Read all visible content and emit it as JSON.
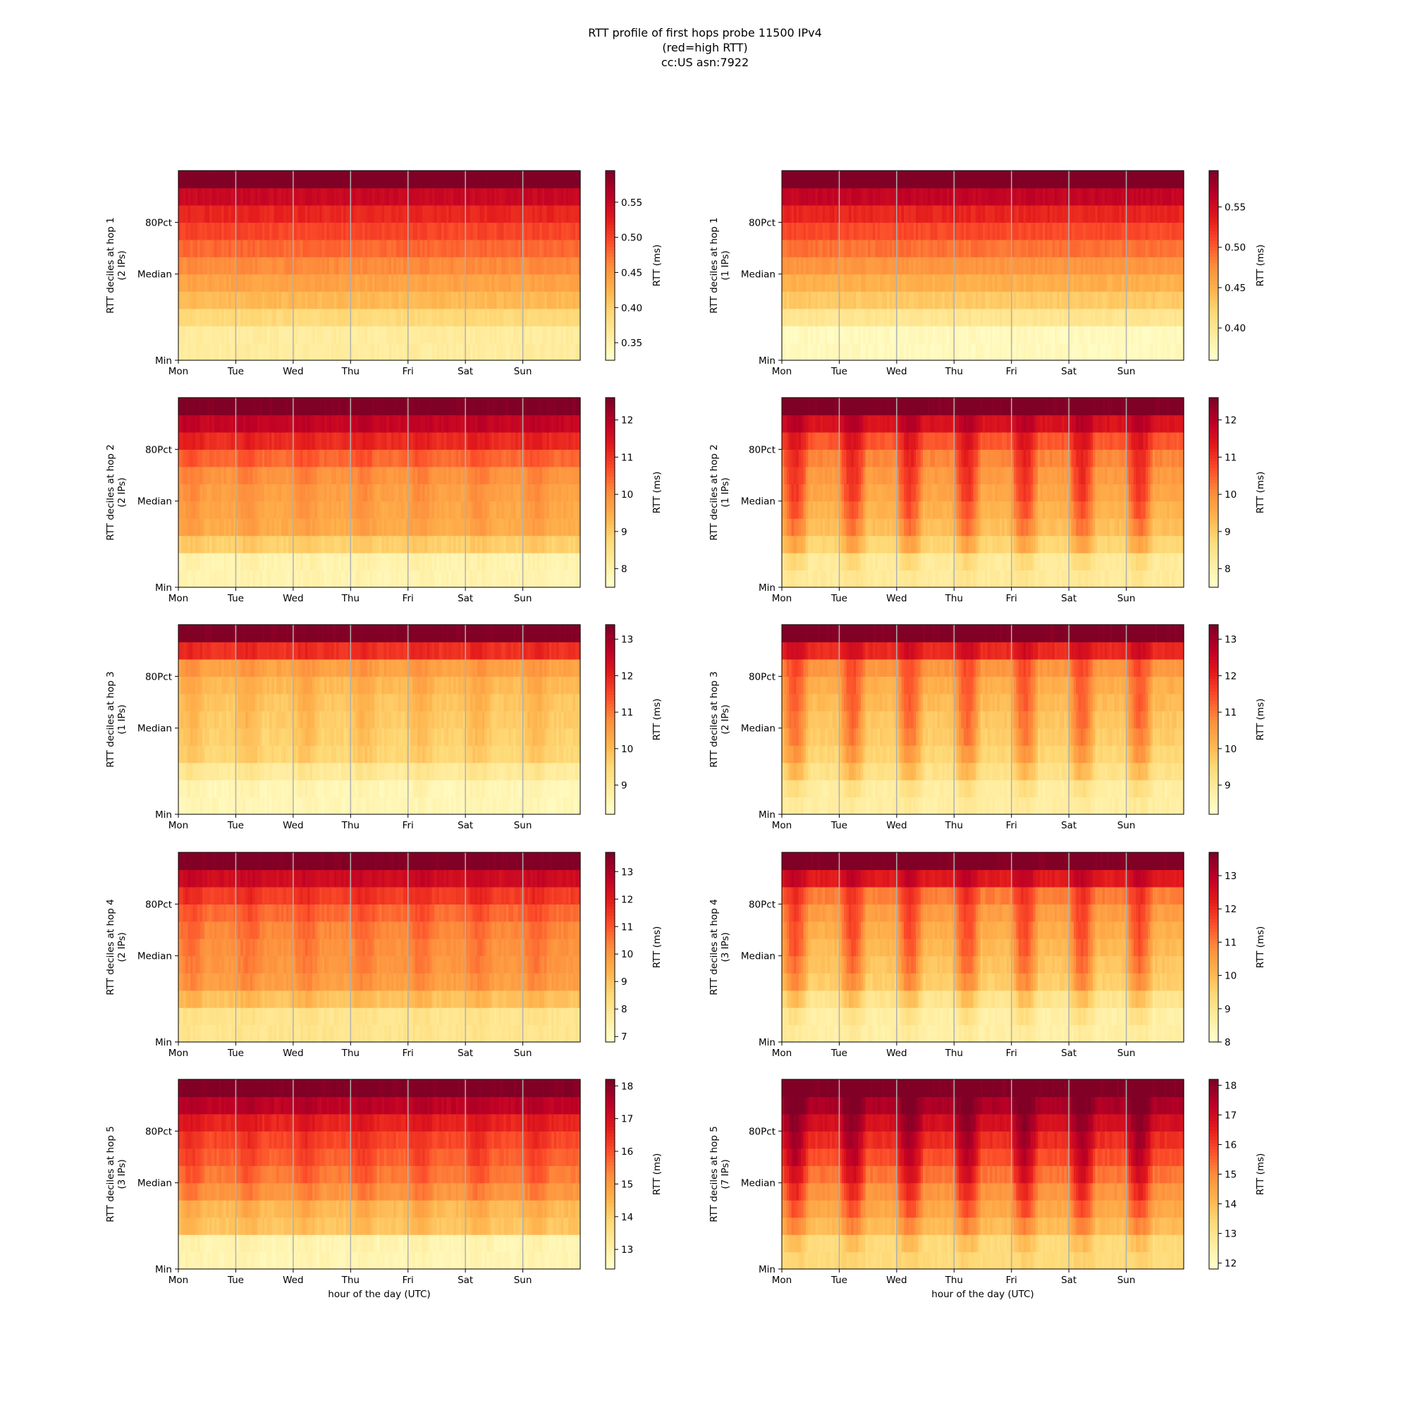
{
  "figure": {
    "title_lines": [
      "RTT profile of first hops probe 11500 IPv4",
      "(red=high RTT)",
      "cc:US asn:7922"
    ]
  },
  "chart_data": [
    {
      "type": "heatmap",
      "hop": 1,
      "ylabel": "RTT deciles at hop 1",
      "ylabel2": "(2 IPs)",
      "xlabel": "",
      "x_ticks": [
        "Mon",
        "Tue",
        "Wed",
        "Thu",
        "Fri",
        "Sat",
        "Sun"
      ],
      "y_ticks": [
        "Min",
        "Median",
        "80Pct"
      ],
      "colorbar_label": "RTT (ms)",
      "colorbar_ticks": [
        0.35,
        0.4,
        0.45,
        0.5,
        0.55
      ],
      "vmin": 0.325,
      "vmax": 0.595,
      "colormap": "YlOrRd",
      "decile_levels": [
        0.36,
        0.39,
        0.42,
        0.44,
        0.46,
        0.48,
        0.5,
        0.52,
        0.55,
        0.6
      ],
      "diurnal": 0
    },
    {
      "type": "heatmap",
      "hop": 1,
      "ylabel": "RTT deciles at hop 1",
      "ylabel2": "(1 IPs)",
      "xlabel": "",
      "x_ticks": [
        "Mon",
        "Tue",
        "Wed",
        "Thu",
        "Fri",
        "Sat",
        "Sun"
      ],
      "y_ticks": [
        "Min",
        "Median",
        "80Pct"
      ],
      "colorbar_label": "RTT (ms)",
      "colorbar_ticks": [
        0.4,
        0.45,
        0.5,
        0.55
      ],
      "vmin": 0.36,
      "vmax": 0.595,
      "colormap": "YlOrRd",
      "decile_levels": [
        0.37,
        0.4,
        0.43,
        0.45,
        0.47,
        0.49,
        0.51,
        0.53,
        0.56,
        0.6
      ],
      "diurnal": 0
    },
    {
      "type": "heatmap",
      "hop": 2,
      "ylabel": "RTT deciles at hop 2",
      "ylabel2": "(2 IPs)",
      "xlabel": "",
      "x_ticks": [
        "Mon",
        "Tue",
        "Wed",
        "Thu",
        "Fri",
        "Sat",
        "Sun"
      ],
      "y_ticks": [
        "Min",
        "Median",
        "80Pct"
      ],
      "colorbar_label": "RTT (ms)",
      "colorbar_ticks": [
        8,
        9,
        10,
        11,
        12
      ],
      "vmin": 7.5,
      "vmax": 12.6,
      "colormap": "YlOrRd",
      "decile_levels": [
        7.9,
        8.9,
        9.5,
        9.6,
        9.7,
        9.9,
        10.4,
        11.1,
        11.8,
        12.6
      ],
      "diurnal": 0.4
    },
    {
      "type": "heatmap",
      "hop": 2,
      "ylabel": "RTT deciles at hop 2",
      "ylabel2": "(1 IPs)",
      "xlabel": "",
      "x_ticks": [
        "Mon",
        "Tue",
        "Wed",
        "Thu",
        "Fri",
        "Sat",
        "Sun"
      ],
      "y_ticks": [
        "Min",
        "Median",
        "80Pct"
      ],
      "colorbar_label": "RTT (ms)",
      "colorbar_ticks": [
        8,
        9,
        10,
        11,
        12
      ],
      "vmin": 7.5,
      "vmax": 12.6,
      "colormap": "YlOrRd",
      "decile_levels": [
        8.2,
        8.8,
        9.2,
        9.4,
        9.6,
        9.8,
        10.1,
        10.6,
        11.5,
        12.6
      ],
      "diurnal": 1.6
    },
    {
      "type": "heatmap",
      "hop": 3,
      "ylabel": "RTT deciles at hop 3",
      "ylabel2": "(1 IPs)",
      "xlabel": "",
      "x_ticks": [
        "Mon",
        "Tue",
        "Wed",
        "Thu",
        "Fri",
        "Sat",
        "Sun"
      ],
      "y_ticks": [
        "Min",
        "Median",
        "80Pct"
      ],
      "colorbar_label": "RTT (ms)",
      "colorbar_ticks": [
        9,
        10,
        11,
        12,
        13
      ],
      "vmin": 8.2,
      "vmax": 13.4,
      "colormap": "YlOrRd",
      "decile_levels": [
        8.5,
        8.9,
        9.5,
        9.6,
        9.7,
        9.8,
        10.0,
        10.4,
        11.8,
        13.4
      ],
      "diurnal": 0.5
    },
    {
      "type": "heatmap",
      "hop": 3,
      "ylabel": "RTT deciles at hop 3",
      "ylabel2": "(2 IPs)",
      "xlabel": "",
      "x_ticks": [
        "Mon",
        "Tue",
        "Wed",
        "Thu",
        "Fri",
        "Sat",
        "Sun"
      ],
      "y_ticks": [
        "Min",
        "Median",
        "80Pct"
      ],
      "colorbar_label": "RTT (ms)",
      "colorbar_ticks": [
        9,
        10,
        11,
        12,
        13
      ],
      "vmin": 8.2,
      "vmax": 13.4,
      "colormap": "YlOrRd",
      "decile_levels": [
        8.8,
        9.2,
        9.5,
        9.7,
        9.8,
        10.0,
        10.2,
        10.6,
        11.9,
        13.4
      ],
      "diurnal": 1.6
    },
    {
      "type": "heatmap",
      "hop": 4,
      "ylabel": "RTT deciles at hop 4",
      "ylabel2": "(2 IPs)",
      "xlabel": "",
      "x_ticks": [
        "Mon",
        "Tue",
        "Wed",
        "Thu",
        "Fri",
        "Sat",
        "Sun"
      ],
      "y_ticks": [
        "Min",
        "Median",
        "80Pct"
      ],
      "colorbar_label": "RTT (ms)",
      "colorbar_ticks": [
        7,
        8,
        9,
        10,
        11,
        12,
        13
      ],
      "vmin": 6.8,
      "vmax": 13.7,
      "colormap": "YlOrRd",
      "decile_levels": [
        8.0,
        9.0,
        9.8,
        10.0,
        10.1,
        10.3,
        10.7,
        11.4,
        12.4,
        13.7
      ],
      "diurnal": 0.5
    },
    {
      "type": "heatmap",
      "hop": 4,
      "ylabel": "RTT deciles at hop 4",
      "ylabel2": "(3 IPs)",
      "xlabel": "",
      "x_ticks": [
        "Mon",
        "Tue",
        "Wed",
        "Thu",
        "Fri",
        "Sat",
        "Sun"
      ],
      "y_ticks": [
        "Min",
        "Median",
        "80Pct"
      ],
      "colorbar_label": "RTT (ms)",
      "colorbar_ticks": [
        8,
        9,
        10,
        11,
        12,
        13
      ],
      "vmin": 8.0,
      "vmax": 13.7,
      "colormap": "YlOrRd",
      "decile_levels": [
        8.6,
        9.0,
        9.6,
        9.8,
        10.0,
        10.2,
        10.5,
        11.0,
        12.3,
        13.7
      ],
      "diurnal": 1.6
    },
    {
      "type": "heatmap",
      "hop": 5,
      "ylabel": "RTT deciles at hop 5",
      "ylabel2": "(3 IPs)",
      "xlabel": "hour of the day (UTC)",
      "x_ticks": [
        "Mon",
        "Tue",
        "Wed",
        "Thu",
        "Fri",
        "Sat",
        "Sun"
      ],
      "y_ticks": [
        "Min",
        "Median",
        "80Pct"
      ],
      "colorbar_label": "RTT (ms)",
      "colorbar_ticks": [
        13,
        14,
        15,
        16,
        17,
        18
      ],
      "vmin": 12.4,
      "vmax": 18.2,
      "colormap": "YlOrRd",
      "decile_levels": [
        12.8,
        14.2,
        14.4,
        15.1,
        15.5,
        15.8,
        16.1,
        16.6,
        17.4,
        18.2
      ],
      "diurnal": 0.5
    },
    {
      "type": "heatmap",
      "hop": 5,
      "ylabel": "RTT deciles at hop 5",
      "ylabel2": "(7 IPs)",
      "xlabel": "hour of the day (UTC)",
      "x_ticks": [
        "Mon",
        "Tue",
        "Wed",
        "Thu",
        "Fri",
        "Sat",
        "Sun"
      ],
      "y_ticks": [
        "Min",
        "Median",
        "80Pct"
      ],
      "colorbar_label": "RTT (ms)",
      "colorbar_ticks": [
        12,
        13,
        14,
        15,
        16,
        17,
        18
      ],
      "vmin": 11.8,
      "vmax": 18.2,
      "colormap": "YlOrRd",
      "decile_levels": [
        13.3,
        14.0,
        14.4,
        14.8,
        15.3,
        15.8,
        16.3,
        16.9,
        17.6,
        18.2
      ],
      "diurnal": 1.6
    }
  ]
}
